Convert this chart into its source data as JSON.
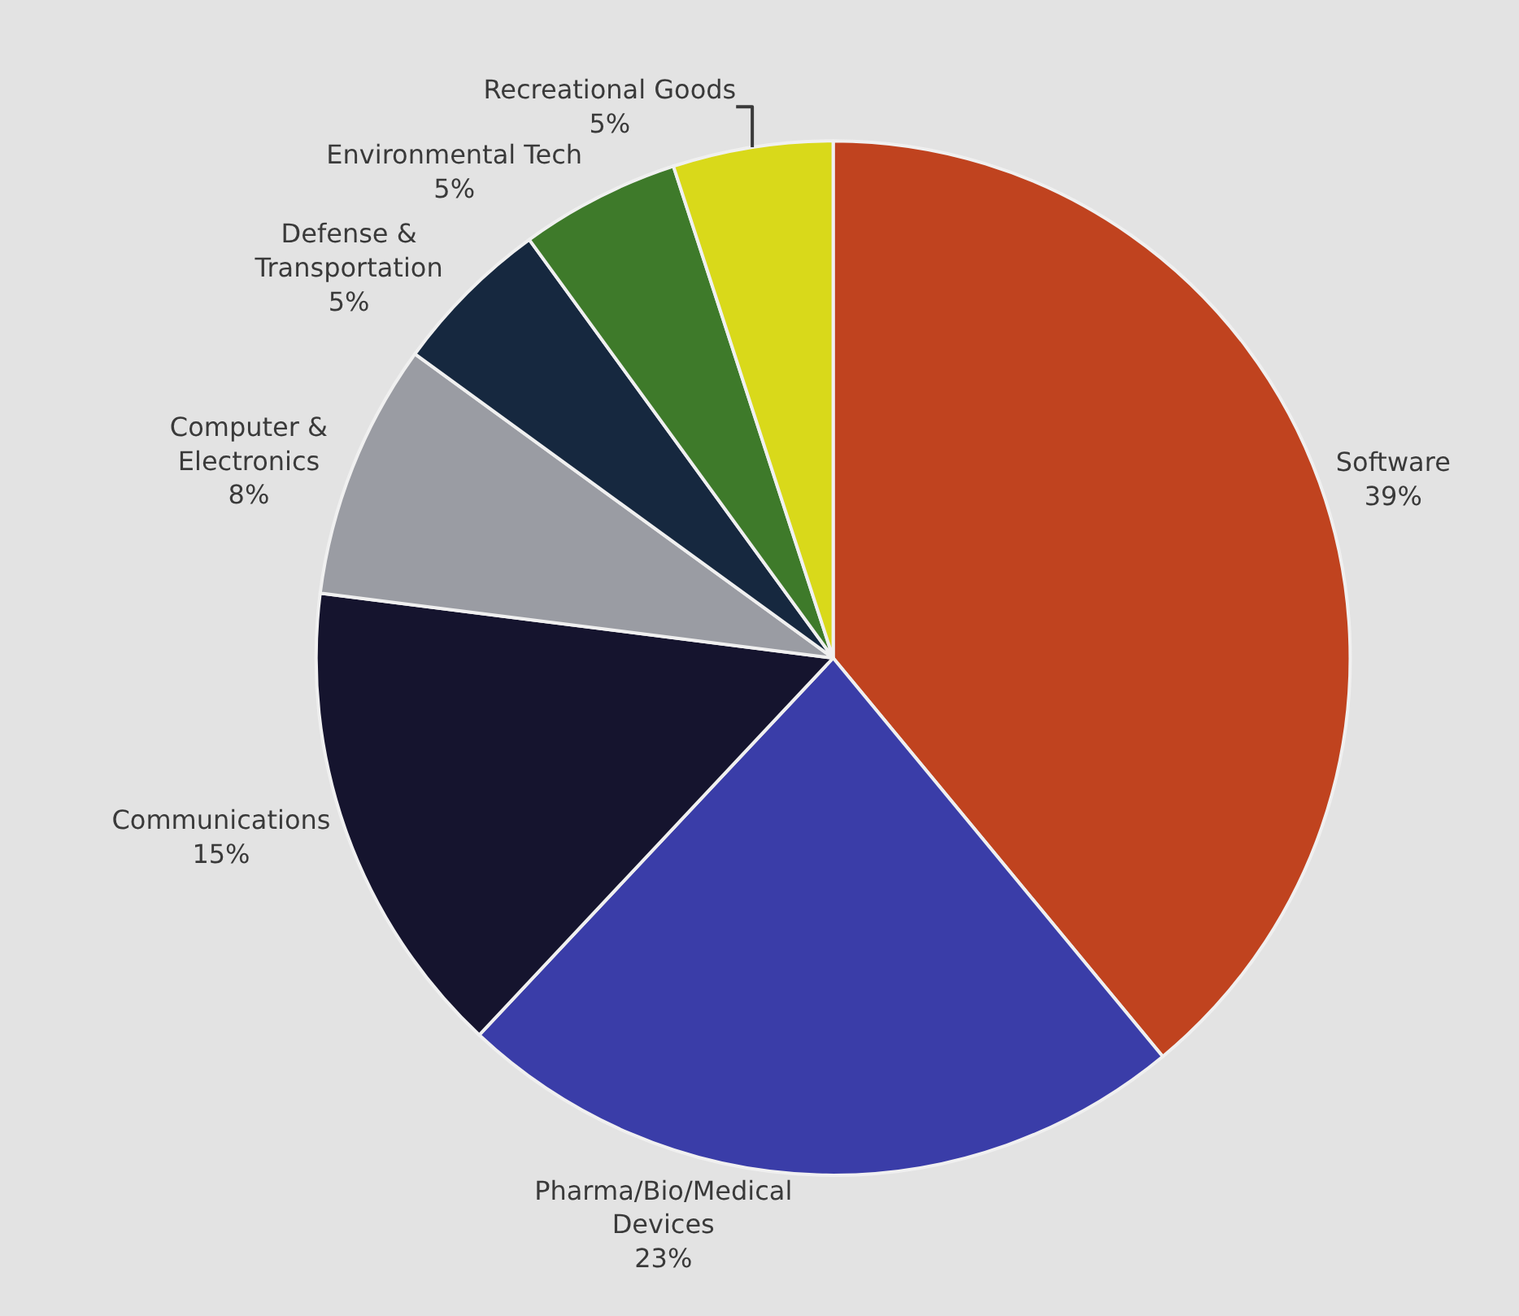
{
  "chart_data": {
    "type": "pie",
    "categories": [
      "Software",
      "Pharma/Bio/Medical\nDevices",
      "Communications",
      "Computer &\nElectronics",
      "Defense &\nTransportation",
      "Environmental Tech",
      "Recreational Goods"
    ],
    "values": [
      39,
      23,
      15,
      8,
      5,
      5,
      5
    ],
    "value_labels": [
      "39%",
      "23%",
      "15%",
      "8%",
      "5%",
      "5%",
      "5%"
    ],
    "colors": [
      "#c0431f",
      "#3a3da8",
      "#15142e",
      "#9a9ca3",
      "#16283f",
      "#3e7a2a",
      "#d9d91a"
    ],
    "legend": false
  }
}
